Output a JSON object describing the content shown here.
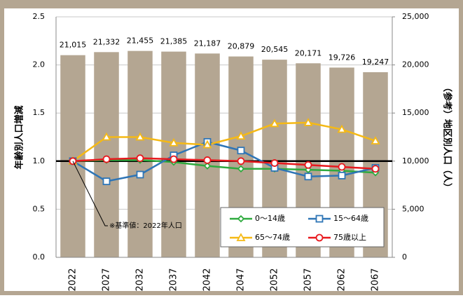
{
  "chart_data": {
    "type": "bar_line",
    "categories": [
      "2022",
      "2027",
      "2032",
      "2037",
      "2042",
      "2047",
      "2052",
      "2057",
      "2062",
      "2067"
    ],
    "bars": {
      "color": "#b4a692",
      "axis": "y2",
      "values": [
        21015,
        21332,
        21455,
        21385,
        21187,
        20879,
        20545,
        20171,
        19726,
        19247
      ],
      "value_labels": [
        "21,015",
        "21,332",
        "21,455",
        "21,385",
        "21,187",
        "20,879",
        "20,545",
        "20,171",
        "19,726",
        "19,247"
      ]
    },
    "series": [
      {
        "name": "0～14歳",
        "color": "#2eaa3e",
        "marker": "diamond",
        "values": [
          1.0,
          1.01,
          1.01,
          0.99,
          0.95,
          0.92,
          0.92,
          0.91,
          0.9,
          0.88
        ]
      },
      {
        "name": "15～64歳",
        "color": "#2e75b6",
        "marker": "square",
        "values": [
          1.0,
          0.79,
          0.86,
          1.06,
          1.2,
          1.11,
          0.93,
          0.84,
          0.85,
          0.93
        ]
      },
      {
        "name": "65～74歳",
        "color": "#f5b915",
        "marker": "triangle",
        "values": [
          1.0,
          1.25,
          1.25,
          1.19,
          1.17,
          1.26,
          1.39,
          1.4,
          1.33,
          1.21
        ]
      },
      {
        "name": "75歳以上",
        "color": "#e8191e",
        "marker": "circle",
        "values": [
          1.0,
          1.02,
          1.03,
          1.02,
          1.01,
          1.0,
          0.98,
          0.96,
          0.94,
          0.92
        ]
      }
    ],
    "ylabel": "年齢別人口増減",
    "y2label": "（参考）地区別人口（人）",
    "ylim": [
      0,
      2.5
    ],
    "yticks": [
      {
        "value": 0,
        "label": "0.0"
      },
      {
        "value": 0.5,
        "label": "0.5"
      },
      {
        "value": 1,
        "label": "1.0"
      },
      {
        "value": 1.5,
        "label": "1.5"
      },
      {
        "value": 2,
        "label": "2.0"
      },
      {
        "value": 2.5,
        "label": "2.5"
      }
    ],
    "y2lim": [
      0,
      25000
    ],
    "y2ticks": [
      0,
      {
        "value": 5000,
        "label": "5,000"
      },
      {
        "value": 10000,
        "label": "10,000"
      },
      {
        "value": 15000,
        "label": "15,000"
      },
      {
        "value": 20000,
        "label": "20,000"
      },
      {
        "value": 25000,
        "label": "25,000"
      }
    ],
    "reference_line": 1.0,
    "annotation": "※基準値：2022年人口",
    "grid": true,
    "legend": "lower right"
  }
}
